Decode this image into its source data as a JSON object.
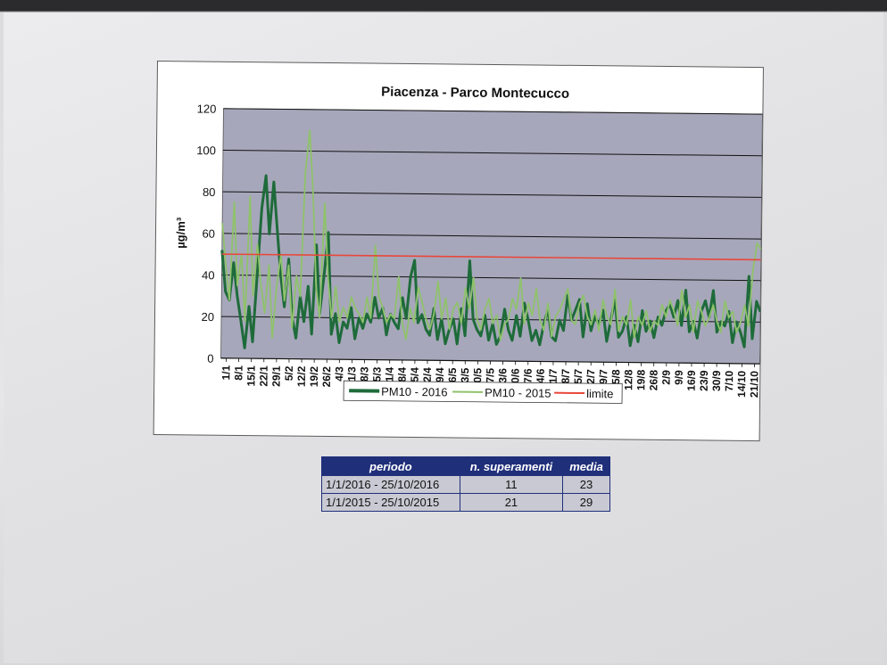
{
  "chart_data": {
    "type": "line",
    "title": "Piacenza - Parco Montecucco",
    "ylabel": "µg/m³",
    "ylim": [
      0,
      120
    ],
    "yticks": [
      0,
      20,
      40,
      60,
      80,
      100,
      120
    ],
    "grid": true,
    "legend_position": "bottom",
    "x_tick_labels": [
      "1/1",
      "8/1",
      "15/1",
      "22/1",
      "29/1",
      "5/2",
      "12/2",
      "19/2",
      "26/2",
      "4/3",
      "11/3",
      "18/3",
      "25/3",
      "1/4",
      "8/4",
      "15/4",
      "22/4",
      "29/4",
      "6/5",
      "13/5",
      "20/5",
      "27/5",
      "3/6",
      "10/6",
      "17/6",
      "24/6",
      "1/7",
      "8/7",
      "15/7",
      "22/7",
      "29/7",
      "5/8",
      "12/8",
      "19/8",
      "26/8",
      "2/9",
      "9/9",
      "16/9",
      "23/9",
      "30/9",
      "7/10",
      "14/10",
      "21/10"
    ],
    "series": [
      {
        "name": "PM10 - 2016",
        "color": "#1e6b3a",
        "values": [
          52,
          32,
          28,
          46,
          30,
          18,
          5,
          25,
          8,
          40,
          72,
          88,
          60,
          85,
          62,
          40,
          25,
          48,
          20,
          10,
          30,
          18,
          35,
          12,
          55,
          22,
          40,
          61,
          12,
          22,
          8,
          18,
          15,
          25,
          10,
          20,
          15,
          22,
          18,
          30,
          20,
          25,
          12,
          22,
          18,
          15,
          30,
          20,
          40,
          48,
          18,
          22,
          15,
          12,
          25,
          10,
          20,
          8,
          15,
          20,
          8,
          25,
          12,
          48,
          20,
          15,
          12,
          22,
          10,
          18,
          8,
          12,
          25,
          15,
          10,
          22,
          12,
          28,
          20,
          10,
          15,
          8,
          18,
          25,
          12,
          10,
          20,
          15,
          32,
          20,
          25,
          30,
          12,
          28,
          15,
          22,
          18,
          25,
          10,
          20,
          30,
          12,
          15,
          22,
          8,
          18,
          10,
          25,
          15,
          20,
          12,
          22,
          18,
          25,
          28,
          22,
          30,
          18,
          35,
          15,
          20,
          12,
          25,
          30,
          22,
          35,
          15,
          20,
          18,
          25,
          10,
          20,
          15,
          8,
          42,
          12,
          30,
          25
        ]
      },
      {
        "name": "PM10 - 2015",
        "color": "#8fc26b",
        "values": [
          65,
          45,
          28,
          75,
          35,
          50,
          18,
          78,
          30,
          55,
          35,
          22,
          45,
          10,
          35,
          50,
          28,
          45,
          15,
          40,
          30,
          90,
          110,
          80,
          35,
          20,
          75,
          40,
          20,
          35,
          18,
          25,
          20,
          30,
          25,
          22,
          18,
          30,
          20,
          55,
          30,
          25,
          18,
          22,
          20,
          40,
          18,
          10,
          25,
          18,
          35,
          28,
          20,
          15,
          22,
          38,
          20,
          30,
          15,
          25,
          28,
          18,
          35,
          25,
          40,
          20,
          15,
          25,
          30,
          18,
          22,
          10,
          18,
          20,
          30,
          25,
          40,
          18,
          28,
          22,
          35,
          20,
          15,
          28,
          12,
          22,
          25,
          30,
          35,
          20,
          18,
          28,
          32,
          22,
          18,
          25,
          15,
          30,
          22,
          18,
          35,
          15,
          22,
          18,
          30,
          12,
          22,
          18,
          25,
          15,
          20,
          18,
          28,
          22,
          30,
          25,
          18,
          35,
          22,
          28,
          15,
          30,
          25,
          18,
          22,
          28,
          20,
          15,
          30,
          22,
          25,
          15,
          20,
          28,
          18,
          45,
          58,
          55
        ]
      },
      {
        "name": "limite",
        "color": "#e8473a",
        "values": [
          50,
          50
        ]
      }
    ]
  },
  "table": {
    "headers": [
      "periodo",
      "n. superamenti",
      "media"
    ],
    "rows": [
      [
        "1/1/2016 - 25/10/2016",
        "11",
        "23"
      ],
      [
        "1/1/2015 - 25/10/2015",
        "21",
        "29"
      ]
    ]
  }
}
